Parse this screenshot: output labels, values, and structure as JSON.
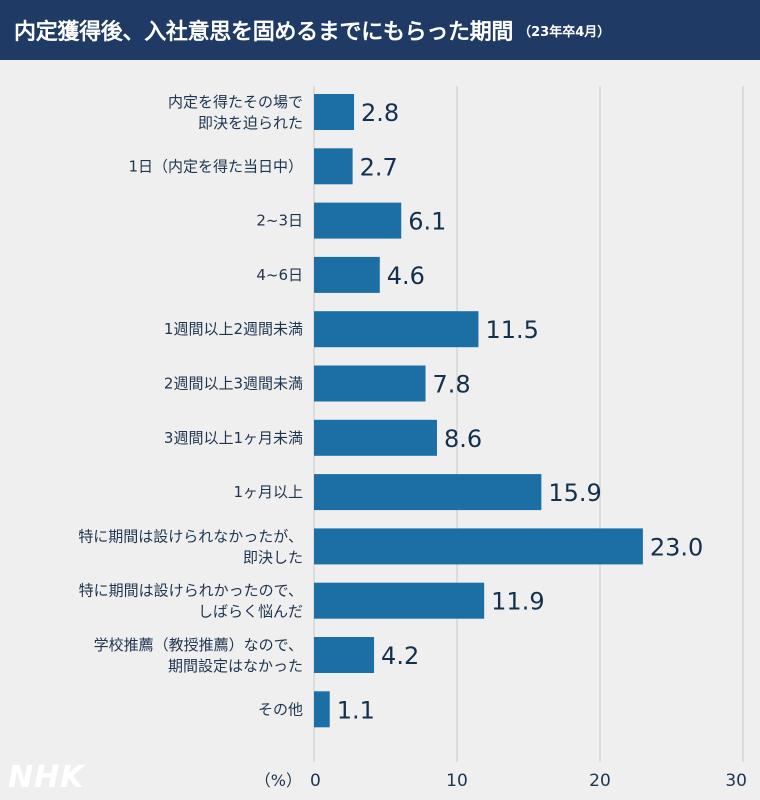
{
  "header": {
    "title": "内定獲得後、入社意思を固めるまでにもらった期間",
    "subtitle": "（23年卒4月）"
  },
  "logo": "NHK",
  "colors": {
    "header_bg": "#1f3a64",
    "bar": "#1c6fa5",
    "background": "#efefef",
    "grid": "#cfcfcf",
    "text": "#1e3550"
  },
  "chart_data": {
    "type": "bar",
    "orientation": "horizontal",
    "categories": [
      [
        "内定を得たその場で",
        "即決を迫られた"
      ],
      [
        "1日（内定を得た当日中）"
      ],
      [
        "2~3日"
      ],
      [
        "4~6日"
      ],
      [
        "1週間以上2週間未満"
      ],
      [
        "2週間以上3週間未満"
      ],
      [
        "3週間以上1ヶ月未満"
      ],
      [
        "1ヶ月以上"
      ],
      [
        "特に期間は設けられなかったが、",
        "即決した"
      ],
      [
        "特に期間は設けられかったので、",
        "しばらく悩んだ"
      ],
      [
        "学校推薦（教授推薦）なので、",
        "期間設定はなかった"
      ],
      [
        "その他"
      ]
    ],
    "values": [
      2.8,
      2.7,
      6.1,
      4.6,
      11.5,
      7.8,
      8.6,
      15.9,
      23.0,
      11.9,
      4.2,
      1.1
    ],
    "value_labels": [
      "2.8",
      "2.7",
      "6.1",
      "4.6",
      "11.5",
      "7.8",
      "8.6",
      "15.9",
      "23.0",
      "11.9",
      "4.2",
      "1.1"
    ],
    "xlim": [
      0,
      30
    ],
    "xticks": [
      "0",
      "10",
      "20",
      "30"
    ],
    "xtick_values": [
      0,
      10,
      20,
      30
    ],
    "unit": "（%）",
    "grid": true
  }
}
